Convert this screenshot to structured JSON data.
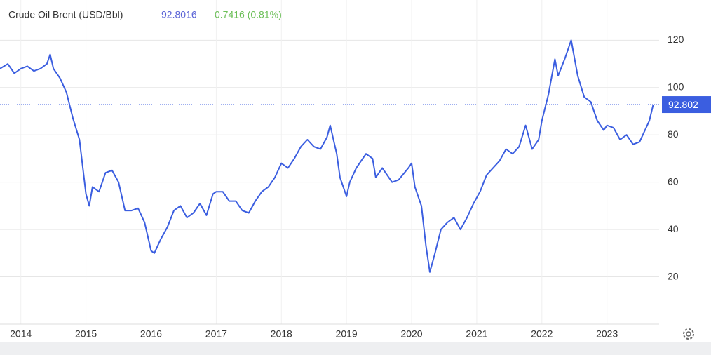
{
  "chart_data": {
    "type": "line",
    "title": "Crude Oil Brent (USD/Bbl)",
    "price": "92.8016",
    "change": "0.7416 (0.81%)",
    "last_value": 92.802,
    "x": [
      2013.68,
      2013.8,
      2013.9,
      2014.0,
      2014.1,
      2014.2,
      2014.3,
      2014.4,
      2014.45,
      2014.5,
      2014.6,
      2014.7,
      2014.8,
      2014.9,
      2015.0,
      2015.05,
      2015.1,
      2015.2,
      2015.3,
      2015.4,
      2015.5,
      2015.6,
      2015.7,
      2015.8,
      2015.9,
      2016.0,
      2016.05,
      2016.15,
      2016.25,
      2016.35,
      2016.45,
      2016.55,
      2016.65,
      2016.75,
      2016.85,
      2016.95,
      2017.0,
      2017.1,
      2017.2,
      2017.3,
      2017.4,
      2017.5,
      2017.6,
      2017.7,
      2017.8,
      2017.9,
      2018.0,
      2018.1,
      2018.2,
      2018.3,
      2018.4,
      2018.5,
      2018.6,
      2018.7,
      2018.75,
      2018.85,
      2018.9,
      2019.0,
      2019.05,
      2019.15,
      2019.3,
      2019.4,
      2019.45,
      2019.55,
      2019.7,
      2019.8,
      2019.95,
      2020.0,
      2020.05,
      2020.15,
      2020.22,
      2020.28,
      2020.35,
      2020.45,
      2020.55,
      2020.65,
      2020.75,
      2020.85,
      2020.95,
      2021.05,
      2021.15,
      2021.25,
      2021.35,
      2021.45,
      2021.55,
      2021.65,
      2021.75,
      2021.85,
      2021.95,
      2022.0,
      2022.1,
      2022.2,
      2022.25,
      2022.35,
      2022.45,
      2022.55,
      2022.65,
      2022.75,
      2022.8,
      2022.85,
      2022.95,
      2023.0,
      2023.1,
      2023.2,
      2023.3,
      2023.4,
      2023.5,
      2023.55,
      2023.65,
      2023.71
    ],
    "series": [
      {
        "name": "Crude Oil Brent",
        "color": "#3b5ee0",
        "values": [
          108,
          110,
          106,
          108,
          109,
          107,
          108,
          110,
          114,
          108,
          104,
          98,
          87,
          78,
          55,
          50,
          58,
          56,
          64,
          65,
          60,
          48,
          48,
          49,
          43,
          31,
          30,
          36,
          41,
          48,
          50,
          45,
          47,
          51,
          46,
          55,
          56,
          56,
          52,
          52,
          48,
          47,
          52,
          56,
          58,
          62,
          68,
          66,
          70,
          75,
          78,
          75,
          74,
          79,
          84,
          72,
          62,
          54,
          60,
          66,
          72,
          70,
          62,
          66,
          60,
          61,
          66,
          68,
          58,
          50,
          33,
          22,
          29,
          40,
          43,
          45,
          40,
          45,
          51,
          56,
          63,
          66,
          69,
          74,
          72,
          75,
          84,
          74,
          78,
          86,
          97,
          112,
          105,
          112,
          120,
          105,
          96,
          94,
          90,
          86,
          82,
          84,
          83,
          78,
          80,
          76,
          77,
          80,
          86,
          92.8
        ]
      }
    ],
    "xlim": [
      2013.68,
      2023.8
    ],
    "xticks": [
      2014,
      2015,
      2016,
      2017,
      2018,
      2019,
      2020,
      2021,
      2022,
      2023
    ],
    "ylim": [
      0,
      137
    ],
    "yticks": [
      20,
      40,
      60,
      80,
      100,
      120
    ],
    "grid": true
  }
}
